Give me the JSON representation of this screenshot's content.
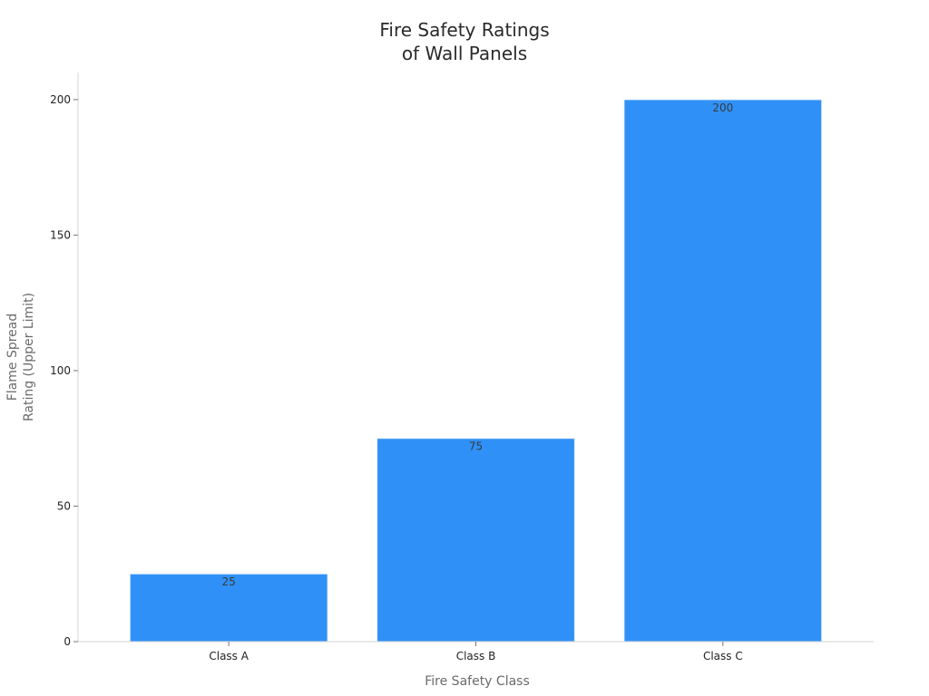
{
  "chart_data": {
    "type": "bar",
    "title_lines": [
      "Fire Safety Ratings",
      "of Wall Panels"
    ],
    "xlabel": "Fire Safety Class",
    "ylabel_lines": [
      "Flame Spread",
      "Rating (Upper Limit)"
    ],
    "categories": [
      "Class A",
      "Class B",
      "Class C"
    ],
    "values": [
      25,
      75,
      200
    ],
    "data_labels": [
      "25",
      "75",
      "200"
    ],
    "ylim": [
      0,
      210
    ],
    "yticks": [
      0,
      50,
      100,
      150,
      200
    ],
    "ytick_labels": [
      "0",
      "50",
      "100",
      "150",
      "200"
    ],
    "bar_color": "#2f91f7",
    "grid": false,
    "legend": "none"
  }
}
